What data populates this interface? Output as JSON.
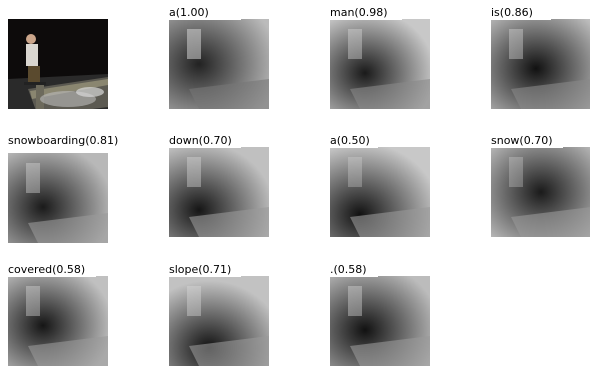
{
  "grid": {
    "original": {
      "caption": ""
    },
    "tiles": [
      {
        "word": "a(1.00)",
        "focus": "upper-left"
      },
      {
        "word": "man(0.98)",
        "focus": "left"
      },
      {
        "word": "is(0.86)",
        "focus": "left"
      },
      {
        "word": "snowboarding(0.81)",
        "focus": "center-left"
      },
      {
        "word": "down(0.70)",
        "focus": "lower-left"
      },
      {
        "word": "a(0.50)",
        "focus": "lower-left"
      },
      {
        "word": "snow(0.70)",
        "focus": "center"
      },
      {
        "word": "covered(0.58)",
        "focus": "left"
      },
      {
        "word": "slope(0.71)",
        "focus": "lower-center"
      },
      {
        "word": ".(0.58)",
        "focus": "left"
      }
    ]
  }
}
